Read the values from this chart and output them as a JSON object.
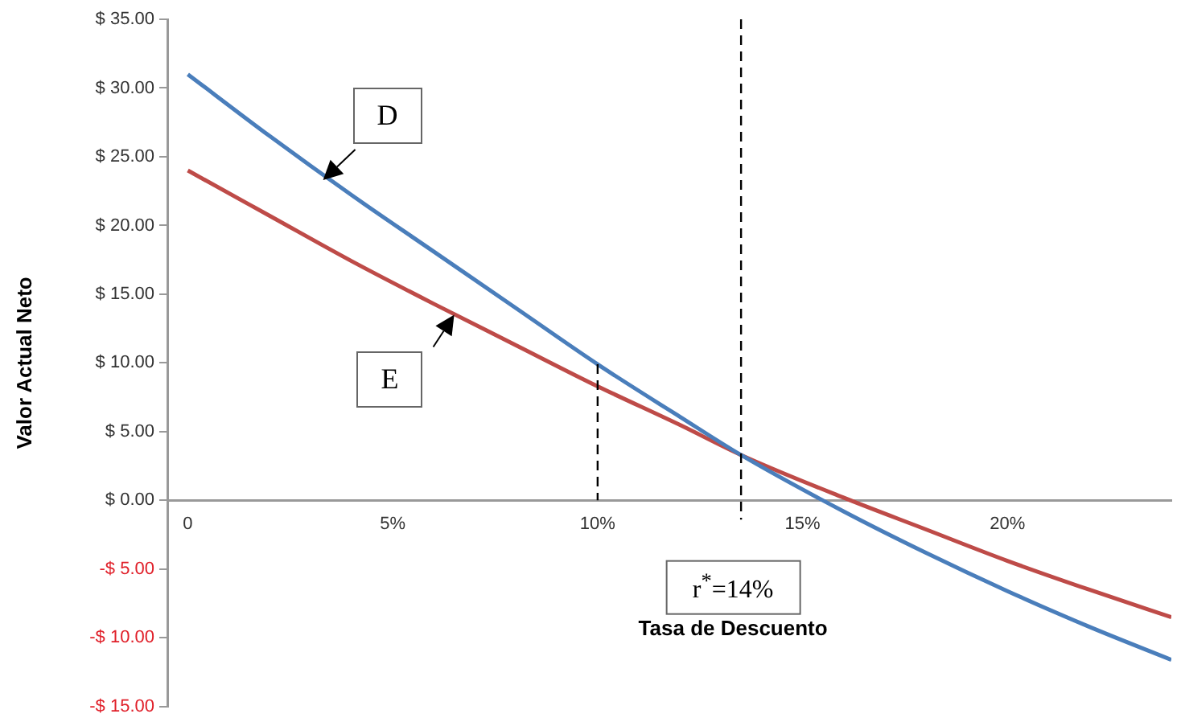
{
  "chart_data": {
    "type": "line",
    "xlabel": "Tasa de Descuento",
    "ylabel": "Valor Actual Neto",
    "xlim": [
      -0.5,
      24
    ],
    "xticks": [
      {
        "value": 0,
        "label": "0"
      },
      {
        "value": 5,
        "label": "5%"
      },
      {
        "value": 10,
        "label": "10%"
      },
      {
        "value": 15,
        "label": "15%"
      },
      {
        "value": 20,
        "label": "20%"
      }
    ],
    "ylim": [
      -15,
      35
    ],
    "yticks": [
      {
        "value": -15,
        "label": "-$ 15.00"
      },
      {
        "value": -10,
        "label": "-$ 10.00"
      },
      {
        "value": -5,
        "label": "-$ 5.00"
      },
      {
        "value": 0,
        "label": "$ 0.00"
      },
      {
        "value": 5,
        "label": "$ 5.00"
      },
      {
        "value": 10,
        "label": "$ 10.00"
      },
      {
        "value": 15,
        "label": "$ 15.00"
      },
      {
        "value": 20,
        "label": "$ 20.00"
      },
      {
        "value": 25,
        "label": "$ 25.00"
      },
      {
        "value": 30,
        "label": "$ 30.00"
      },
      {
        "value": 35,
        "label": "$ 35.00"
      }
    ],
    "series": [
      {
        "color": "#4a7ebb",
        "x": [
          0,
          2,
          4,
          6,
          8,
          10,
          12,
          13.5,
          16,
          18,
          20,
          22,
          24
        ],
        "values": [
          31,
          26.5,
          22.2,
          18.1,
          14,
          9.9,
          6.1,
          3.3,
          -0.8,
          -3.8,
          -6.6,
          -9.2,
          -11.6
        ]
      },
      {
        "color": "#be4b48",
        "x": [
          0,
          2,
          4,
          6,
          8,
          10,
          12,
          13.5,
          16,
          18,
          20,
          22,
          24
        ],
        "values": [
          24,
          20.7,
          17.4,
          14.3,
          11.3,
          8.3,
          5.5,
          3.3,
          0.2,
          -2.1,
          -4.4,
          -6.5,
          -8.5
        ]
      }
    ],
    "ref_lines": [
      {
        "axis": "x",
        "value": 10,
        "line_style": "dashed"
      },
      {
        "axis": "x",
        "value": 13.5,
        "label": "r$^{*}$=14%",
        "line_style": "dashed"
      }
    ],
    "annotations": [
      {
        "text": "D",
        "x": 3.3,
        "y": 23.3
      },
      {
        "text": "E",
        "x": 6.5,
        "y": 13.5
      }
    ],
    "grid": false,
    "legend": false,
    "marker": "none",
    "line_style": "solid"
  }
}
